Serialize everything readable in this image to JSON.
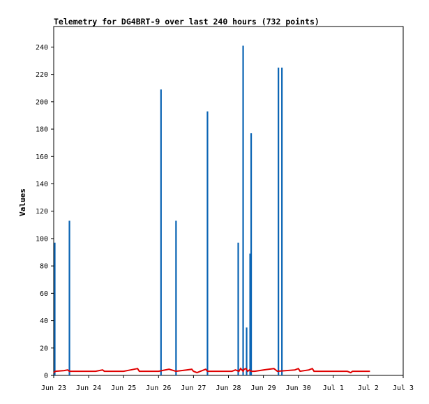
{
  "chart_data": {
    "type": "line",
    "title": "Telemetry for DG4BRT-9 over last 240 hours (732 points)",
    "ylabel": "Values",
    "xlabel": "",
    "ylim": [
      0,
      255
    ],
    "xlim": [
      0,
      10
    ],
    "grid": false,
    "legend": "none",
    "x_ticks": [
      {
        "x": 0,
        "label": "Jun 23"
      },
      {
        "x": 1,
        "label": "Jun 24"
      },
      {
        "x": 2,
        "label": "Jun 25"
      },
      {
        "x": 3,
        "label": "Jun 26"
      },
      {
        "x": 4,
        "label": "Jun 27"
      },
      {
        "x": 5,
        "label": "Jun 28"
      },
      {
        "x": 6,
        "label": "Jun 29"
      },
      {
        "x": 7,
        "label": "Jun 30"
      },
      {
        "x": 8,
        "label": "Jul 1"
      },
      {
        "x": 9,
        "label": "Jul 2"
      },
      {
        "x": 10,
        "label": "Jul 3"
      }
    ],
    "y_ticks": [
      0,
      20,
      40,
      60,
      80,
      100,
      120,
      140,
      160,
      180,
      200,
      220,
      240
    ],
    "series": [
      {
        "color": "#0a64b4",
        "style": "spikes",
        "points": [
          {
            "x": 0.03,
            "y": 97
          },
          {
            "x": 0.45,
            "y": 113
          },
          {
            "x": 3.07,
            "y": 209
          },
          {
            "x": 3.5,
            "y": 113
          },
          {
            "x": 4.4,
            "y": 193
          },
          {
            "x": 5.28,
            "y": 97
          },
          {
            "x": 5.42,
            "y": 241
          },
          {
            "x": 5.52,
            "y": 35
          },
          {
            "x": 5.62,
            "y": 89
          },
          {
            "x": 5.65,
            "y": 177
          },
          {
            "x": 6.43,
            "y": 225
          },
          {
            "x": 6.53,
            "y": 225
          }
        ]
      },
      {
        "color": "#e00000",
        "style": "line",
        "points": [
          {
            "x": 0.0,
            "y": 2
          },
          {
            "x": 0.05,
            "y": 3
          },
          {
            "x": 0.3,
            "y": 3.5
          },
          {
            "x": 0.4,
            "y": 4
          },
          {
            "x": 0.45,
            "y": 3
          },
          {
            "x": 1.2,
            "y": 3
          },
          {
            "x": 1.3,
            "y": 3.5
          },
          {
            "x": 1.4,
            "y": 4
          },
          {
            "x": 1.45,
            "y": 3
          },
          {
            "x": 2.0,
            "y": 3
          },
          {
            "x": 2.2,
            "y": 4
          },
          {
            "x": 2.4,
            "y": 5
          },
          {
            "x": 2.45,
            "y": 3
          },
          {
            "x": 3.0,
            "y": 3
          },
          {
            "x": 3.1,
            "y": 3.5
          },
          {
            "x": 3.3,
            "y": 4.5
          },
          {
            "x": 3.5,
            "y": 3
          },
          {
            "x": 3.8,
            "y": 4
          },
          {
            "x": 3.95,
            "y": 4.5
          },
          {
            "x": 4.0,
            "y": 3
          },
          {
            "x": 4.1,
            "y": 2
          },
          {
            "x": 4.2,
            "y": 3
          },
          {
            "x": 4.35,
            "y": 4.5
          },
          {
            "x": 4.4,
            "y": 3
          },
          {
            "x": 5.1,
            "y": 3
          },
          {
            "x": 5.2,
            "y": 4
          },
          {
            "x": 5.3,
            "y": 3
          },
          {
            "x": 5.35,
            "y": 5
          },
          {
            "x": 5.42,
            "y": 3
          },
          {
            "x": 5.45,
            "y": 4.5
          },
          {
            "x": 5.5,
            "y": 5
          },
          {
            "x": 5.55,
            "y": 3
          },
          {
            "x": 5.6,
            "y": 4
          },
          {
            "x": 5.65,
            "y": 3
          },
          {
            "x": 5.75,
            "y": 3
          },
          {
            "x": 6.0,
            "y": 4
          },
          {
            "x": 6.3,
            "y": 5
          },
          {
            "x": 6.4,
            "y": 3
          },
          {
            "x": 6.9,
            "y": 4
          },
          {
            "x": 7.0,
            "y": 5
          },
          {
            "x": 7.05,
            "y": 3
          },
          {
            "x": 7.3,
            "y": 4
          },
          {
            "x": 7.4,
            "y": 5
          },
          {
            "x": 7.45,
            "y": 3
          },
          {
            "x": 8.4,
            "y": 3
          },
          {
            "x": 8.5,
            "y": 2
          },
          {
            "x": 8.55,
            "y": 3
          },
          {
            "x": 9.05,
            "y": 3
          }
        ]
      }
    ]
  }
}
